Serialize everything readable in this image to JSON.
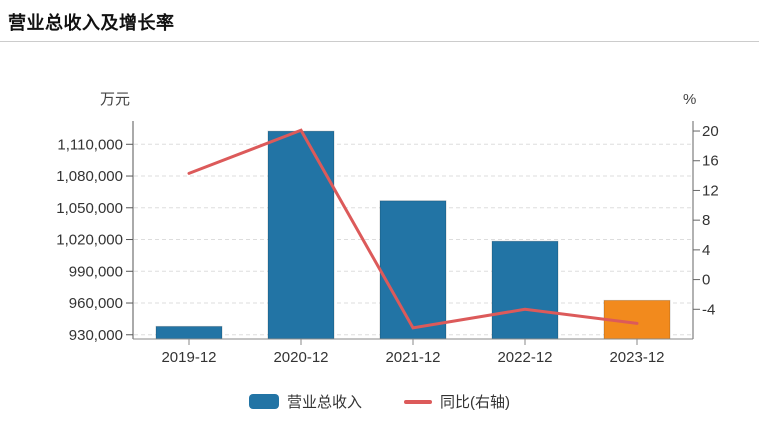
{
  "header": {
    "title": "营业总收入及增长率"
  },
  "chart_data": {
    "type": "combo",
    "title": "营业总收入及增长率",
    "categories": [
      "2019-12",
      "2020-12",
      "2021-12",
      "2022-12",
      "2023-12"
    ],
    "series": [
      {
        "name": "营业总收入",
        "type": "bar",
        "axis": "left",
        "unit": "万元",
        "values": [
          937900,
          1122400,
          1056600,
          1018400,
          962500
        ],
        "colors": [
          "#2274A5",
          "#2274A5",
          "#2274A5",
          "#2274A5",
          "#F28A1D"
        ]
      },
      {
        "name": "同比(右轴)",
        "type": "line",
        "axis": "right",
        "unit": "%",
        "values": [
          14.3,
          20.1,
          -6.5,
          -4.0,
          -5.9
        ],
        "color": "#DC5A5A"
      }
    ],
    "left_axis": {
      "label": "万元",
      "ticks": [
        930000,
        960000,
        990000,
        1020000,
        1050000,
        1080000,
        1110000
      ],
      "min": 926000,
      "max": 1132000
    },
    "right_axis": {
      "label": "%",
      "ticks": [
        -4,
        0,
        4,
        8,
        12,
        16,
        20
      ],
      "min": -8,
      "max": 21.35
    },
    "grid": "horizontal-dashed",
    "legend_position": "bottom"
  }
}
